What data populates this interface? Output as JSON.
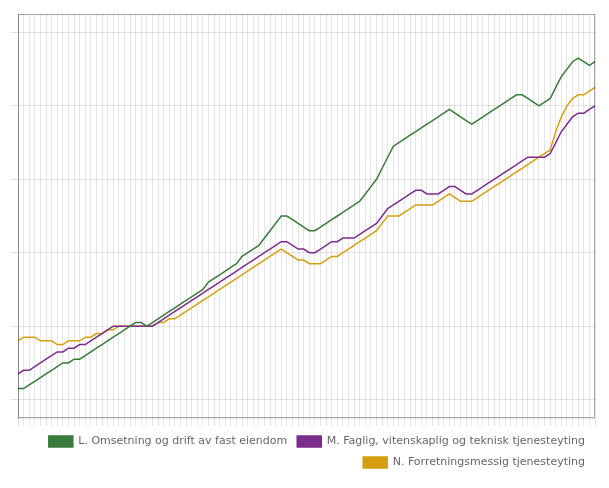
{
  "chart_data": {
    "type": "line",
    "categories": [
      null,
      null,
      null,
      null,
      null,
      null,
      null,
      null,
      null,
      null,
      null,
      null,
      null,
      null,
      null,
      null,
      null,
      null,
      null,
      null,
      null,
      null,
      null,
      null,
      null,
      null,
      null,
      null,
      null,
      null,
      null,
      null,
      null,
      null,
      null,
      null,
      null,
      null,
      null,
      null,
      null,
      null,
      null,
      null,
      null,
      null,
      null,
      null,
      null,
      null,
      null,
      null,
      null,
      null,
      null,
      null,
      null,
      null,
      null,
      null,
      null,
      null,
      null,
      null,
      null,
      null,
      null,
      null,
      null,
      null,
      null,
      null,
      null,
      null,
      null,
      null,
      null,
      null,
      null,
      null,
      null,
      null,
      null,
      null,
      null,
      null,
      null,
      null,
      null,
      null,
      null,
      null,
      null,
      null,
      null,
      null,
      null,
      null,
      null,
      null,
      null,
      null,
      null,
      null
    ],
    "series": [
      {
        "name": "L. Omsetning og drift av fast eiendom",
        "color": "#3a7a3a",
        "values": [
          83,
          83,
          84,
          85,
          86,
          87,
          88,
          89,
          90,
          90,
          91,
          91,
          92,
          93,
          94,
          95,
          96,
          97,
          98,
          99,
          100,
          101,
          101,
          100,
          101,
          102,
          103,
          104,
          105,
          106,
          107,
          108,
          109,
          110,
          112,
          113,
          114,
          115,
          116,
          117,
          119,
          120,
          121,
          122,
          124,
          126,
          128,
          130,
          130,
          129,
          128,
          127,
          126,
          126,
          127,
          128,
          129,
          130,
          131,
          132,
          133,
          134,
          136,
          138,
          140,
          143,
          146,
          149,
          150,
          151,
          152,
          153,
          154,
          155,
          156,
          157,
          158,
          159,
          158,
          157,
          156,
          155,
          156,
          157,
          158,
          159,
          160,
          161,
          162,
          163,
          163,
          162,
          161,
          160,
          161,
          162,
          165,
          168,
          170,
          172,
          173,
          172,
          171,
          172
        ]
      },
      {
        "name": "M. Faglig, vitenskaplig og teknisk tjenesteyting",
        "color": "#7b2d8b",
        "values": [
          87,
          88,
          88,
          89,
          90,
          91,
          92,
          93,
          93,
          94,
          94,
          95,
          95,
          96,
          97,
          98,
          99,
          100,
          100,
          100,
          100,
          100,
          100,
          100,
          100,
          101,
          102,
          103,
          104,
          105,
          106,
          107,
          108,
          109,
          110,
          111,
          112,
          113,
          114,
          115,
          116,
          117,
          118,
          119,
          120,
          121,
          122,
          123,
          123,
          122,
          121,
          121,
          120,
          120,
          121,
          122,
          123,
          123,
          124,
          124,
          124,
          125,
          126,
          127,
          128,
          130,
          132,
          133,
          134,
          135,
          136,
          137,
          137,
          136,
          136,
          136,
          137,
          138,
          138,
          137,
          136,
          136,
          137,
          138,
          139,
          140,
          141,
          142,
          143,
          144,
          145,
          146,
          146,
          146,
          146,
          147,
          150,
          153,
          155,
          157,
          158,
          158,
          159,
          160
        ]
      },
      {
        "name": "N. Forretningsmessig tjenesteyting",
        "color": "#d4a010",
        "values": [
          96,
          97,
          97,
          97,
          96,
          96,
          96,
          95,
          95,
          96,
          96,
          96,
          97,
          97,
          98,
          98,
          99,
          99,
          100,
          100,
          100,
          100,
          100,
          100,
          100,
          101,
          101,
          102,
          102,
          103,
          104,
          105,
          106,
          107,
          108,
          109,
          110,
          111,
          112,
          113,
          114,
          115,
          116,
          117,
          118,
          119,
          120,
          121,
          120,
          119,
          118,
          118,
          117,
          117,
          117,
          118,
          119,
          119,
          120,
          121,
          122,
          123,
          124,
          125,
          126,
          128,
          130,
          130,
          130,
          131,
          132,
          133,
          133,
          133,
          133,
          134,
          135,
          136,
          135,
          134,
          134,
          134,
          135,
          136,
          137,
          138,
          139,
          140,
          141,
          142,
          143,
          144,
          145,
          146,
          147,
          148,
          153,
          157,
          160,
          162,
          163,
          163,
          164,
          165
        ]
      }
    ],
    "ylim": [
      75,
      185
    ],
    "yticks": [
      80,
      100,
      120,
      140,
      160,
      180
    ],
    "grid": true,
    "legend": "lower right",
    "tick_labels": false
  }
}
